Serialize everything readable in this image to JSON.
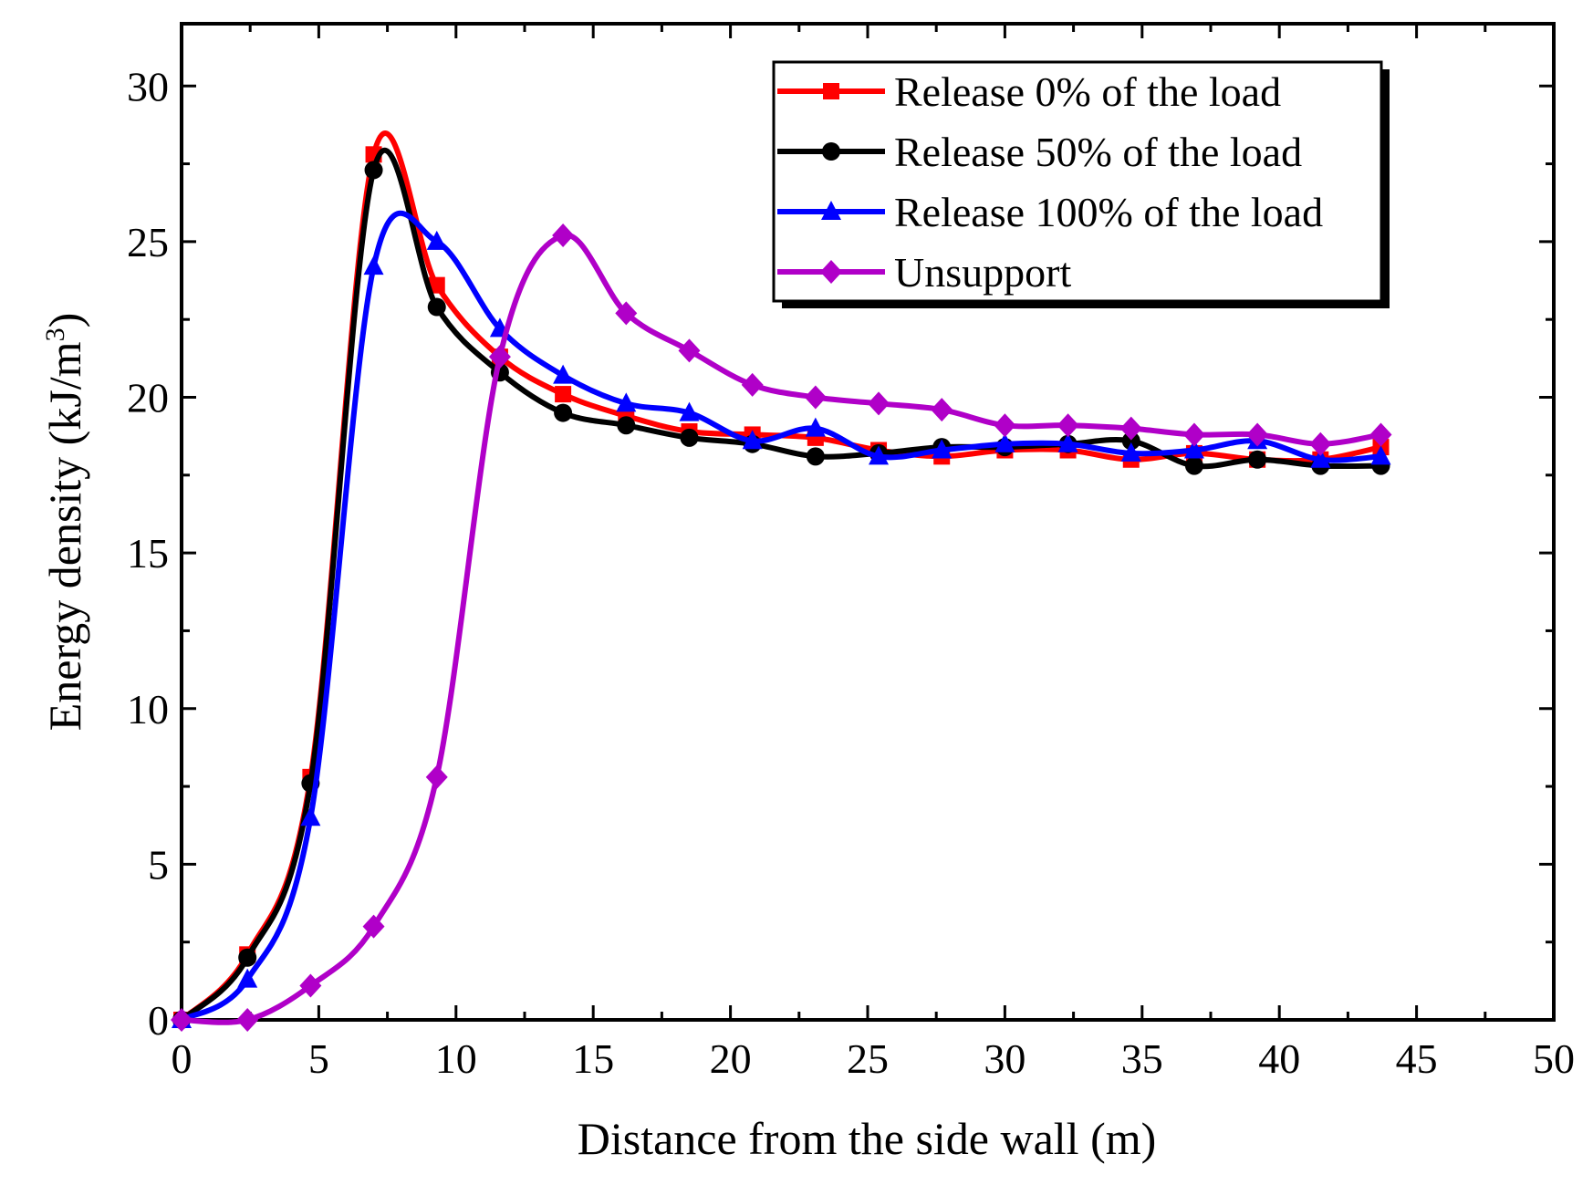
{
  "chart_data": {
    "type": "line",
    "xlabel": "Distance from the side wall (m)",
    "ylabel": "Energy density (kJ/m",
    "ylabel_sup": "3",
    "ylabel_tail": ")",
    "xlim": [
      0,
      50
    ],
    "ylim": [
      0,
      32
    ],
    "xticks": [
      0,
      5,
      10,
      15,
      20,
      25,
      30,
      35,
      40,
      45,
      50
    ],
    "yticks": [
      0,
      5,
      10,
      15,
      20,
      25,
      30
    ],
    "grid": false,
    "legend_position": "top-right",
    "series": [
      {
        "name": "Release 0% of the load",
        "color": "#ff0000",
        "marker": "square",
        "x": [
          0,
          2.4,
          4.7,
          7.0,
          9.3,
          11.6,
          13.9,
          16.2,
          18.5,
          20.8,
          23.1,
          25.4,
          27.7,
          30.0,
          32.3,
          34.6,
          36.9,
          39.2,
          41.5,
          43.7
        ],
        "y": [
          0,
          2.1,
          7.8,
          27.8,
          23.6,
          21.3,
          20.1,
          19.4,
          18.9,
          18.8,
          18.7,
          18.3,
          18.1,
          18.3,
          18.3,
          18.0,
          18.2,
          18.0,
          18.0,
          18.4
        ]
      },
      {
        "name": "Release 50% of the load",
        "color": "#000000",
        "marker": "circle",
        "x": [
          0,
          2.4,
          4.7,
          7.0,
          9.3,
          11.6,
          13.9,
          16.2,
          18.5,
          20.8,
          23.1,
          25.4,
          27.7,
          30.0,
          32.3,
          34.6,
          36.9,
          39.2,
          41.5,
          43.7
        ],
        "y": [
          0,
          2.0,
          7.6,
          27.3,
          22.9,
          20.8,
          19.5,
          19.1,
          18.7,
          18.5,
          18.1,
          18.2,
          18.4,
          18.4,
          18.5,
          18.6,
          17.8,
          18.0,
          17.8,
          17.8
        ]
      },
      {
        "name": "Release 100% of the load",
        "color": "#0000ff",
        "marker": "triangle",
        "x": [
          0,
          2.4,
          4.7,
          7.0,
          9.3,
          11.6,
          13.9,
          16.2,
          18.5,
          20.8,
          23.1,
          25.4,
          27.7,
          30.0,
          32.3,
          34.6,
          36.9,
          39.2,
          41.5,
          43.7
        ],
        "y": [
          0,
          1.3,
          6.5,
          24.2,
          25.0,
          22.2,
          20.7,
          19.8,
          19.5,
          18.6,
          19.0,
          18.1,
          18.3,
          18.5,
          18.5,
          18.2,
          18.3,
          18.6,
          18.0,
          18.1
        ]
      },
      {
        "name": "Unsupport",
        "color": "#b000c8",
        "marker": "diamond",
        "x": [
          0,
          2.4,
          4.7,
          7.0,
          9.3,
          11.6,
          13.9,
          16.2,
          18.5,
          20.8,
          23.1,
          25.4,
          27.7,
          30.0,
          32.3,
          34.6,
          36.9,
          39.2,
          41.5,
          43.7
        ],
        "y": [
          0,
          0,
          1.1,
          3.0,
          7.8,
          21.3,
          25.2,
          22.7,
          21.5,
          20.4,
          20.0,
          19.8,
          19.6,
          19.1,
          19.1,
          19.0,
          18.8,
          18.8,
          18.5,
          18.8
        ]
      }
    ]
  }
}
